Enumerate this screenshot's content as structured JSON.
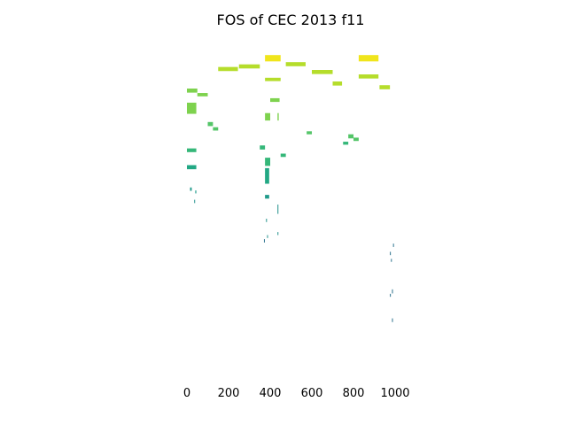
{
  "chart_data": {
    "type": "heatmap",
    "title": "FOS of CEC 2013 f11",
    "xlabel": "",
    "ylabel": "",
    "xlim": [
      -10,
      1010
    ],
    "ylim": [
      0,
      100
    ],
    "x_ticks": [
      0,
      200,
      400,
      600,
      800,
      1000
    ],
    "x_tick_labels": [
      "0",
      "200",
      "400",
      "600",
      "800",
      "1000"
    ],
    "y_axis_visible": false,
    "grid": false,
    "colormap": "viridis",
    "colors": {
      "yellow": "#f0e51c",
      "yellow_green": "#b5dd2b",
      "light_green": "#7ed24e",
      "green": "#54c568",
      "teal_green": "#35b779",
      "teal": "#22a884",
      "dark_teal": "#1f9a8a",
      "blue_teal": "#21918c",
      "blue": "#2c728e"
    },
    "cells": [
      {
        "x": 375,
        "y": 1.0,
        "w": 75,
        "h": 1.7,
        "color": "yellow"
      },
      {
        "x": 825,
        "y": 1.0,
        "w": 95,
        "h": 1.7,
        "color": "yellow"
      },
      {
        "x": 475,
        "y": 2.9,
        "w": 95,
        "h": 1.1,
        "color": "yellow_green"
      },
      {
        "x": 150,
        "y": 4.2,
        "w": 95,
        "h": 1.1,
        "color": "yellow_green"
      },
      {
        "x": 250,
        "y": 3.5,
        "w": 100,
        "h": 1.1,
        "color": "yellow_green"
      },
      {
        "x": 600,
        "y": 5.0,
        "w": 100,
        "h": 1.1,
        "color": "yellow_green"
      },
      {
        "x": 825,
        "y": 6.2,
        "w": 95,
        "h": 1.1,
        "color": "yellow_green"
      },
      {
        "x": 375,
        "y": 7.1,
        "w": 75,
        "h": 0.9,
        "color": "yellow_green"
      },
      {
        "x": 700,
        "y": 8.1,
        "w": 45,
        "h": 1.1,
        "color": "yellow_green"
      },
      {
        "x": 925,
        "y": 9.1,
        "w": 50,
        "h": 1.1,
        "color": "yellow_green"
      },
      {
        "x": 0,
        "y": 10.0,
        "w": 50,
        "h": 1.1,
        "color": "light_green"
      },
      {
        "x": 50,
        "y": 11.2,
        "w": 50,
        "h": 0.9,
        "color": "light_green"
      },
      {
        "x": 400,
        "y": 12.6,
        "w": 45,
        "h": 1.0,
        "color": "light_green"
      },
      {
        "x": 0,
        "y": 13.8,
        "w": 45,
        "h": 3.0,
        "color": "light_green"
      },
      {
        "x": 375,
        "y": 16.6,
        "w": 25,
        "h": 2.0,
        "color": "light_green"
      },
      {
        "x": 435,
        "y": 16.6,
        "w": 6,
        "h": 2.0,
        "color": "light_green"
      },
      {
        "x": 100,
        "y": 19.0,
        "w": 25,
        "h": 1.1,
        "color": "green"
      },
      {
        "x": 125,
        "y": 20.4,
        "w": 25,
        "h": 0.9,
        "color": "green"
      },
      {
        "x": 575,
        "y": 21.5,
        "w": 25,
        "h": 0.8,
        "color": "green"
      },
      {
        "x": 775,
        "y": 22.3,
        "w": 25,
        "h": 1.1,
        "color": "green"
      },
      {
        "x": 800,
        "y": 23.2,
        "w": 25,
        "h": 0.9,
        "color": "green"
      },
      {
        "x": 750,
        "y": 24.3,
        "w": 25,
        "h": 0.8,
        "color": "teal_green"
      },
      {
        "x": 350,
        "y": 25.3,
        "w": 25,
        "h": 1.1,
        "color": "teal_green"
      },
      {
        "x": 0,
        "y": 26.1,
        "w": 45,
        "h": 1.0,
        "color": "teal_green"
      },
      {
        "x": 450,
        "y": 27.5,
        "w": 25,
        "h": 0.9,
        "color": "teal_green"
      },
      {
        "x": 375,
        "y": 28.6,
        "w": 25,
        "h": 2.2,
        "color": "teal_green"
      },
      {
        "x": 0,
        "y": 30.6,
        "w": 45,
        "h": 1.1,
        "color": "teal"
      },
      {
        "x": 375,
        "y": 31.4,
        "w": 20,
        "h": 4.2,
        "color": "teal"
      },
      {
        "x": 15,
        "y": 36.6,
        "w": 8,
        "h": 0.9,
        "color": "dark_teal"
      },
      {
        "x": 40,
        "y": 37.4,
        "w": 5,
        "h": 0.8,
        "color": "dark_teal"
      },
      {
        "x": 375,
        "y": 38.6,
        "w": 20,
        "h": 1.0,
        "color": "dark_teal"
      },
      {
        "x": 35,
        "y": 39.9,
        "w": 4,
        "h": 0.9,
        "color": "blue_teal"
      },
      {
        "x": 435,
        "y": 41.2,
        "w": 4,
        "h": 2.5,
        "color": "blue_teal"
      },
      {
        "x": 380,
        "y": 45.0,
        "w": 4,
        "h": 0.9,
        "color": "blue_teal"
      },
      {
        "x": 435,
        "y": 48.6,
        "w": 4,
        "h": 0.8,
        "color": "blue_teal"
      },
      {
        "x": 385,
        "y": 49.4,
        "w": 4,
        "h": 0.8,
        "color": "blue_teal"
      },
      {
        "x": 370,
        "y": 50.5,
        "w": 4,
        "h": 0.9,
        "color": "blue"
      },
      {
        "x": 990,
        "y": 51.7,
        "w": 4,
        "h": 0.9,
        "color": "blue"
      },
      {
        "x": 975,
        "y": 53.9,
        "w": 4,
        "h": 0.9,
        "color": "blue"
      },
      {
        "x": 980,
        "y": 55.8,
        "w": 4,
        "h": 0.8,
        "color": "blue"
      },
      {
        "x": 985,
        "y": 64.0,
        "w": 4,
        "h": 1.1,
        "color": "blue"
      },
      {
        "x": 975,
        "y": 65.2,
        "w": 4,
        "h": 0.8,
        "color": "blue"
      },
      {
        "x": 985,
        "y": 71.8,
        "w": 4,
        "h": 1.0,
        "color": "blue"
      }
    ]
  }
}
